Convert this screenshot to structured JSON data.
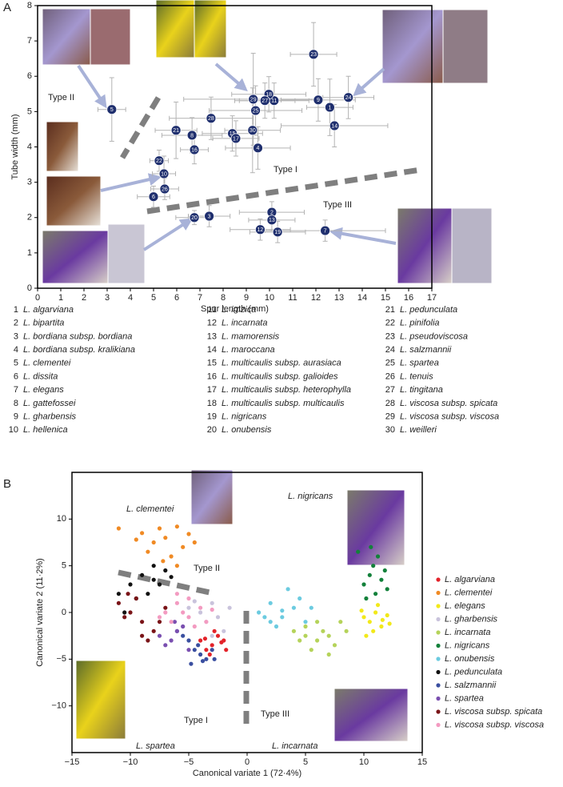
{
  "chart_data": [
    {
      "type": "scatter",
      "panel": "A",
      "xlabel": "Spur length (mm)",
      "ylabel": "Tube width (mm)",
      "xlim": [
        0,
        17
      ],
      "ylim": [
        0,
        8
      ],
      "xticks": [
        0,
        1,
        2,
        3,
        4,
        5,
        6,
        7,
        8,
        9,
        10,
        11,
        12,
        13,
        14,
        15,
        16,
        17
      ],
      "yticks": [
        0,
        1,
        2,
        3,
        4,
        5,
        6,
        7,
        8
      ],
      "color": "#1f2f6e",
      "error_color": "#b3b3b3",
      "point_labels": [
        1,
        2,
        3,
        4,
        5,
        6,
        7,
        8,
        9,
        10,
        11,
        12,
        13,
        14,
        15,
        16,
        17,
        18,
        19,
        20,
        21,
        22,
        23,
        24,
        25,
        26,
        27,
        28,
        29,
        30
      ],
      "x": [
        12.6,
        10.1,
        7.4,
        9.5,
        3.2,
        5.0,
        12.4,
        6.66,
        12.1,
        5.45,
        10.2,
        9.6,
        10.1,
        12.8,
        8.4,
        6.76,
        8.55,
        9.97,
        10.35,
        6.76,
        5.97,
        5.24,
        11.9,
        13.4,
        9.4,
        5.48,
        9.8,
        7.48,
        9.3,
        9.27
      ],
      "values": [
        5.12,
        2.15,
        2.04,
        3.97,
        5.06,
        2.59,
        1.63,
        4.33,
        5.33,
        3.24,
        5.31,
        1.66,
        1.93,
        4.6,
        4.38,
        3.92,
        4.24,
        5.49,
        1.59,
        2.0,
        4.47,
        3.61,
        6.62,
        5.4,
        5.03,
        2.81,
        5.31,
        4.81,
        5.35,
        4.47
      ],
      "xerr": [
        1.0,
        1.4,
        0.9,
        1.4,
        0.6,
        0.7,
        2.6,
        1.3,
        1.6,
        0.5,
        1.5,
        1.3,
        1.0,
        2.3,
        1.3,
        0.6,
        1.0,
        1.6,
        1.2,
        0.8,
        0.9,
        0.4,
        1.0,
        1.1,
        2.0,
        0.6,
        1.3,
        1.8,
        3.0,
        1.2
      ],
      "yerr": [
        0.8,
        0.3,
        0.3,
        0.6,
        0.9,
        0.3,
        0.3,
        0.5,
        0.6,
        0.5,
        0.5,
        0.3,
        0.3,
        0.6,
        0.5,
        0.4,
        0.5,
        0.5,
        0.3,
        0.2,
        0.8,
        0.3,
        0.9,
        0.6,
        0.7,
        0.3,
        0.5,
        0.6,
        1.3,
        1.2
      ],
      "annotations": [
        "Type I",
        "Type II",
        "Type III"
      ],
      "species": [
        {
          "number": 1,
          "name": "L. algarviana"
        },
        {
          "number": 2,
          "name": "L. bipartita"
        },
        {
          "number": 3,
          "name": "L. bordiana subsp. bordiana"
        },
        {
          "number": 4,
          "name": "L. bordiana subsp. kralikiana"
        },
        {
          "number": 5,
          "name": "L. clementei"
        },
        {
          "number": 6,
          "name": "L. dissita"
        },
        {
          "number": 7,
          "name": "L. elegans"
        },
        {
          "number": 8,
          "name": "L. gattefossei"
        },
        {
          "number": 9,
          "name": "L. gharbensis"
        },
        {
          "number": 10,
          "name": "L. hellenica"
        },
        {
          "number": 11,
          "name": "L. imzica"
        },
        {
          "number": 12,
          "name": "L. incarnata"
        },
        {
          "number": 13,
          "name": "L. mamorensis"
        },
        {
          "number": 14,
          "name": "L. maroccana"
        },
        {
          "number": 15,
          "name": "L. multicaulis subsp. aurasiaca"
        },
        {
          "number": 16,
          "name": "L. multicaulis subsp. galioides"
        },
        {
          "number": 17,
          "name": "L. multicaulis subsp. heterophylla"
        },
        {
          "number": 18,
          "name": "L. multicaulis subsp. multicaulis"
        },
        {
          "number": 19,
          "name": "L. nigricans"
        },
        {
          "number": 20,
          "name": "L. onubensis"
        },
        {
          "number": 21,
          "name": "L. pedunculata"
        },
        {
          "number": 22,
          "name": "L. pinifolia"
        },
        {
          "number": 23,
          "name": "L. pseudoviscosa"
        },
        {
          "number": 24,
          "name": "L. salzmannii"
        },
        {
          "number": 25,
          "name": "L. spartea"
        },
        {
          "number": 26,
          "name": "L. tenuis"
        },
        {
          "number": 27,
          "name": "L. tingitana"
        },
        {
          "number": 28,
          "name": "L. viscosa subsp. spicata"
        },
        {
          "number": 29,
          "name": "L. viscosa subsp. viscosa"
        },
        {
          "number": 30,
          "name": "L. weilleri"
        }
      ]
    },
    {
      "type": "scatter",
      "panel": "B",
      "xlabel": "Canonical variate 1 (72·4%)",
      "ylabel": "Canonical variate 2 (11·2%)",
      "xlim": [
        -15,
        15
      ],
      "ylim": [
        -15,
        15
      ],
      "xticks": [
        {
          "value": -15,
          "label": "−15"
        },
        {
          "value": -10,
          "label": "−10"
        },
        {
          "value": -5,
          "label": "−5"
        },
        0,
        5,
        10,
        15
      ],
      "yticks": [
        {
          "value": -10,
          "label": "−10"
        },
        {
          "value": -5,
          "label": "−5"
        },
        0,
        5,
        10
      ],
      "legend": "right",
      "annotations": [
        "Type I",
        "Type II",
        "Type III",
        "L. clementei",
        "L. nigricans",
        "L. spartea",
        "L. incarnata"
      ],
      "series": [
        {
          "name": "L. algarviana",
          "color": "#e3232a",
          "x": [
            -2.5,
            -2,
            -3,
            -3.5,
            -2.8,
            -4,
            -1.8,
            -3.2,
            -2.2,
            -3.6
          ],
          "values": [
            -2.5,
            -3,
            -3.5,
            -4,
            -2,
            -3,
            -4,
            -4.5,
            -3.2,
            -2.8
          ]
        },
        {
          "name": "L. clementei",
          "color": "#f08a24",
          "x": [
            -11,
            -9,
            -8,
            -7.5,
            -7,
            -6,
            -5.5,
            -8.5,
            -6.5,
            -5,
            -9.5,
            -7.2,
            -6,
            -4.5
          ],
          "values": [
            9,
            8.5,
            7.5,
            9,
            8,
            9.2,
            7,
            6.5,
            6,
            8.4,
            7.8,
            5.5,
            5,
            7.5
          ]
        },
        {
          "name": "L. elegans",
          "color": "#f2e91a",
          "x": [
            10,
            10.5,
            11,
            11.5,
            12,
            10.8,
            11.2,
            9.8,
            12.2,
            10.2,
            11.6
          ],
          "values": [
            -0.5,
            -1,
            0,
            -1.5,
            -0.3,
            -2,
            0.8,
            0.2,
            -1.2,
            -2.5,
            -0.8
          ]
        },
        {
          "name": "L. gharbensis",
          "color": "#c9c3dc",
          "x": [
            -5,
            -4,
            -3,
            -2.5,
            -3.5,
            -4.5,
            -2,
            -1.5,
            -3,
            -5.5
          ],
          "values": [
            0.5,
            0,
            1,
            -0.5,
            -1,
            1.2,
            -2,
            0.5,
            -2.5,
            -1.5
          ]
        },
        {
          "name": "L. incarnata",
          "color": "#b5d35a",
          "x": [
            4,
            5,
            6,
            7,
            8,
            5.5,
            6.5,
            7.5,
            4.5,
            6,
            8.5,
            5,
            7
          ],
          "values": [
            -2,
            -1.5,
            -3,
            -2.5,
            -1,
            -4,
            -2,
            -3.5,
            -3,
            -1,
            -2,
            -2.5,
            -4.5
          ]
        },
        {
          "name": "L. nigricans",
          "color": "#13813b",
          "x": [
            10,
            10.5,
            11,
            11.5,
            12,
            10.8,
            11.2,
            10.2,
            11.8,
            10.6,
            9.5
          ],
          "values": [
            3,
            4,
            2,
            3.5,
            2.5,
            5,
            6,
            1.5,
            4.5,
            7,
            6.5
          ]
        },
        {
          "name": "L. onubensis",
          "color": "#6ccbe0",
          "x": [
            1,
            2,
            3,
            4,
            5,
            2.5,
            3.5,
            1.5,
            4.5,
            3,
            2,
            5.5
          ],
          "values": [
            0,
            1,
            -0.5,
            0.5,
            -1,
            -1.5,
            2.5,
            -0.5,
            1.5,
            0.2,
            -1,
            0.5
          ]
        },
        {
          "name": "L. pedunculata",
          "color": "#111111",
          "x": [
            -11,
            -10,
            -9,
            -8,
            -7,
            -8.5,
            -7.5,
            -9.5,
            -6.5,
            -8,
            -10.5
          ],
          "values": [
            2,
            3,
            4,
            3.5,
            4.5,
            2,
            3,
            1.5,
            3.8,
            5,
            0
          ]
        },
        {
          "name": "L. salzmannii",
          "color": "#3a4fa0",
          "x": [
            -5,
            -4.5,
            -4,
            -3.5,
            -3,
            -5.5,
            -4.2,
            -3.8,
            -2.8,
            -6,
            -4.8
          ],
          "values": [
            -3,
            -4,
            -4.5,
            -5,
            -4,
            -2.5,
            -3.5,
            -5.2,
            -5,
            -2,
            -5.5
          ]
        },
        {
          "name": "L. spartea",
          "color": "#7a4fb0",
          "x": [
            -6.5,
            -6,
            -7,
            -5.5,
            -7.5,
            -5,
            -6.2
          ],
          "values": [
            -3,
            -2,
            -3.5,
            -1.5,
            -2.5,
            -4,
            -1
          ]
        },
        {
          "name": "L. viscosa subsp. spicata",
          "color": "#7a1418",
          "x": [
            -11,
            -10,
            -9,
            -8,
            -10.5,
            -9.5,
            -8.5,
            -7.5,
            -7,
            -9,
            -10.2
          ],
          "values": [
            1,
            0,
            -1,
            -2,
            -0.5,
            1.5,
            -3,
            -1,
            0.5,
            -2.5,
            2
          ]
        },
        {
          "name": "L. viscosa subsp. viscosa",
          "color": "#f39bc1",
          "x": [
            -7,
            -6,
            -5,
            -4,
            -6.5,
            -5.5,
            -4.5,
            -7.5,
            -5,
            -6,
            -3.5,
            -3
          ],
          "values": [
            0,
            1,
            -0.5,
            0.5,
            -1,
            0,
            -1.5,
            -0.5,
            1.5,
            2,
            -1,
            0.3
          ]
        }
      ]
    }
  ]
}
